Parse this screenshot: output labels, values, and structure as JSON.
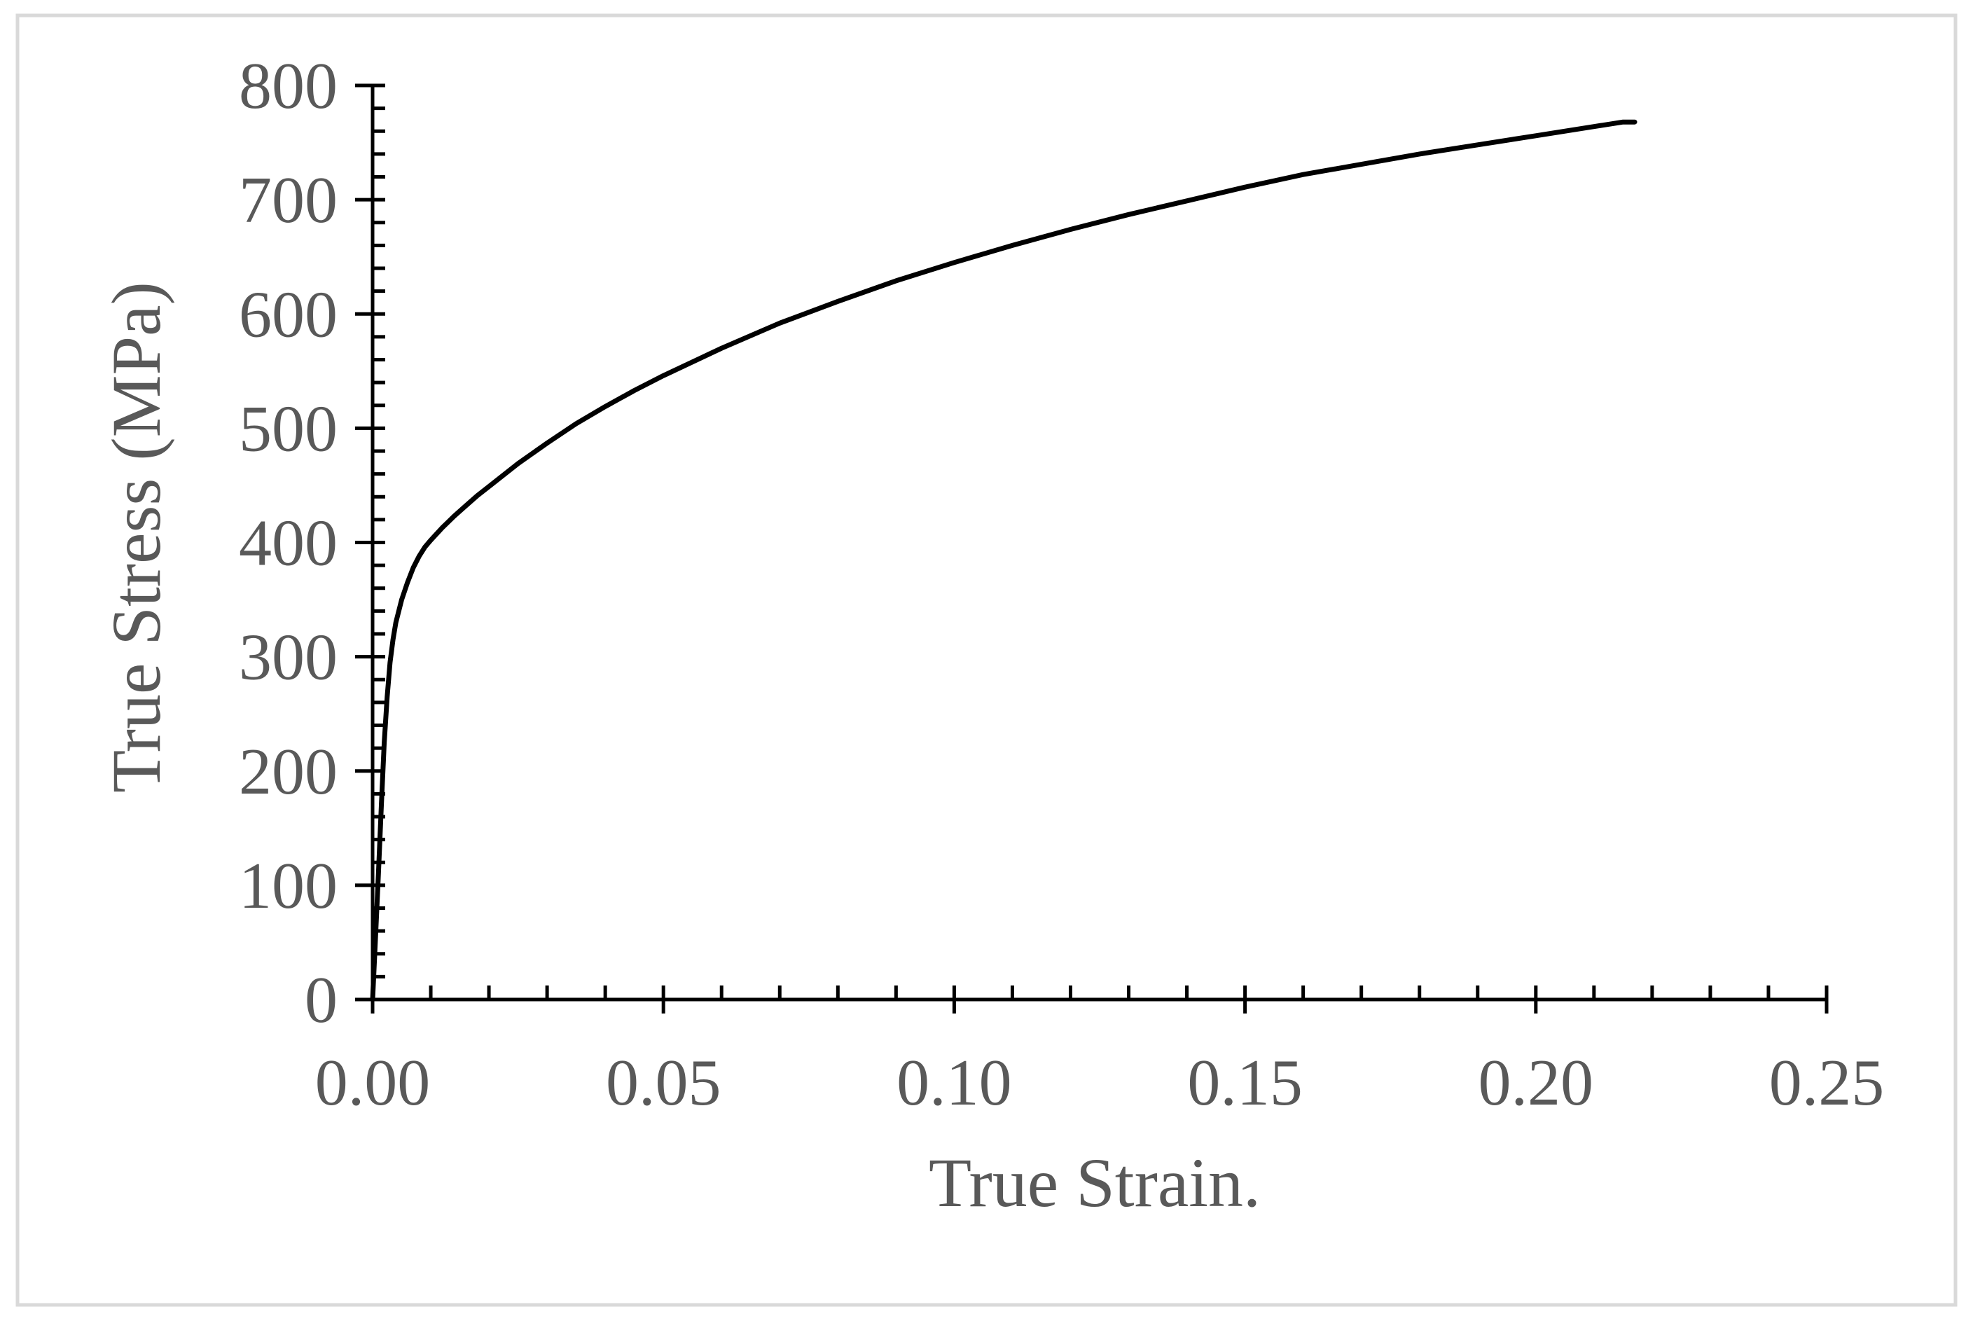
{
  "chart_data": {
    "type": "line",
    "title": "",
    "xlabel": "True Strain.",
    "ylabel": "True Stress (MPa)",
    "xlim": [
      0,
      0.25
    ],
    "ylim": [
      0,
      800
    ],
    "x_major_step": 0.05,
    "x_minor_step": 0.01,
    "y_major_step": 100,
    "y_minor_step": 20,
    "grid": false,
    "legend": "none",
    "x_tick_labels": [
      "0.00",
      "0.05",
      "0.10",
      "0.15",
      "0.20",
      "0.25"
    ],
    "y_tick_labels": [
      "0",
      "100",
      "200",
      "300",
      "400",
      "500",
      "600",
      "700",
      "800"
    ],
    "colors": {
      "line": "#000000",
      "axis": "#000000",
      "text": "#595959",
      "frame": "#d9d9d9"
    },
    "series": [
      {
        "x": [
          0,
          0.0005,
          0.001,
          0.0015,
          0.002,
          0.0025,
          0.003,
          0.0035,
          0.004,
          0.005,
          0.006,
          0.007,
          0.008,
          0.009,
          0.01,
          0.012,
          0.014,
          0.016,
          0.018,
          0.02,
          0.025,
          0.03,
          0.035,
          0.04,
          0.045,
          0.05,
          0.06,
          0.07,
          0.08,
          0.09,
          0.1,
          0.11,
          0.12,
          0.13,
          0.14,
          0.15,
          0.16,
          0.17,
          0.18,
          0.19,
          0.2,
          0.21,
          0.215,
          0.217
        ],
        "y": [
          0,
          55,
          110,
          170,
          225,
          265,
          295,
          315,
          330,
          350,
          365,
          378,
          388,
          396,
          402,
          413,
          423,
          432,
          441,
          449,
          469,
          487,
          504,
          519,
          533,
          546,
          570,
          592,
          611,
          629,
          645,
          660,
          674,
          687,
          699,
          711,
          722,
          731,
          740,
          748,
          756,
          764,
          768,
          768
        ]
      }
    ]
  }
}
